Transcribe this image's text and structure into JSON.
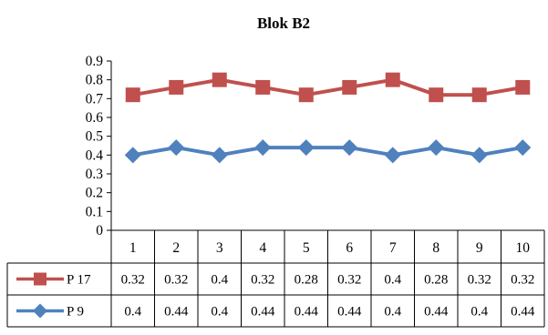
{
  "chart_data": {
    "type": "line",
    "title": "Blok B2",
    "xlabel": "",
    "ylabel": "",
    "categories": [
      "1",
      "2",
      "3",
      "4",
      "5",
      "6",
      "7",
      "8",
      "9",
      "10"
    ],
    "y_ticks": [
      "0",
      "0.1",
      "0.2",
      "0.3",
      "0.4",
      "0.5",
      "0.6",
      "0.7",
      "0.8",
      "0.9"
    ],
    "ylim": [
      0,
      0.9
    ],
    "grid": false,
    "legend": "data-table-left",
    "series": [
      {
        "name": "P 17",
        "color": "#c0504d",
        "marker": "square",
        "plotted_values": [
          0.72,
          0.76,
          0.8,
          0.76,
          0.72,
          0.76,
          0.8,
          0.72,
          0.72,
          0.76
        ],
        "table_values": [
          "0.32",
          "0.32",
          "0.4",
          "0.32",
          "0.28",
          "0.32",
          "0.4",
          "0.28",
          "0.32",
          "0.32"
        ]
      },
      {
        "name": "P 9",
        "color": "#4f81bd",
        "marker": "diamond",
        "plotted_values": [
          0.4,
          0.44,
          0.4,
          0.44,
          0.44,
          0.44,
          0.4,
          0.44,
          0.4,
          0.44
        ],
        "table_values": [
          "0.4",
          "0.44",
          "0.4",
          "0.44",
          "0.44",
          "0.44",
          "0.4",
          "0.44",
          "0.4",
          "0.44"
        ]
      }
    ]
  }
}
